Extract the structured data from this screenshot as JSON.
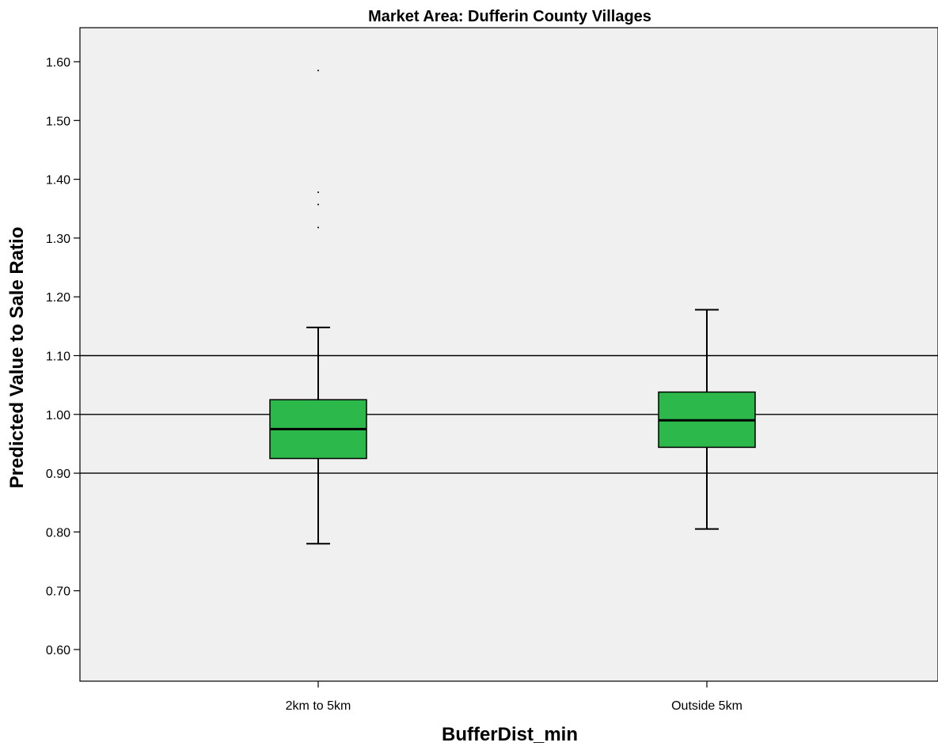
{
  "chart_data": {
    "type": "boxplot",
    "title": "Market Area: Dufferin County Villages",
    "xlabel": "BufferDist_min",
    "ylabel": "Predicted Value to Sale Ratio",
    "ylim": [
      0.55,
      1.65
    ],
    "yticks": [
      0.6,
      0.7,
      0.8,
      0.9,
      1.0,
      1.1,
      1.2,
      1.3,
      1.4,
      1.5,
      1.6
    ],
    "ytick_labels": [
      "0.60",
      "0.70",
      "0.80",
      "0.90",
      "1.00",
      "1.10",
      "1.20",
      "1.30",
      "1.40",
      "1.50",
      "1.60"
    ],
    "reference_lines": [
      0.9,
      1.0,
      1.1
    ],
    "categories": [
      "2km to 5km",
      "Outside 5km"
    ],
    "boxes": [
      {
        "category": "2km to 5km",
        "whisker_low": 0.78,
        "q1": 0.925,
        "median": 0.975,
        "q3": 1.025,
        "whisker_high": 1.148,
        "outliers": [
          1.585,
          1.378,
          1.357,
          1.318
        ]
      },
      {
        "category": "Outside 5km",
        "whisker_low": 0.805,
        "q1": 0.944,
        "median": 0.99,
        "q3": 1.038,
        "whisker_high": 1.178,
        "outliers": []
      }
    ],
    "box_color": "#2db84c",
    "plot_background": "#f0f0f0",
    "grid": false
  }
}
